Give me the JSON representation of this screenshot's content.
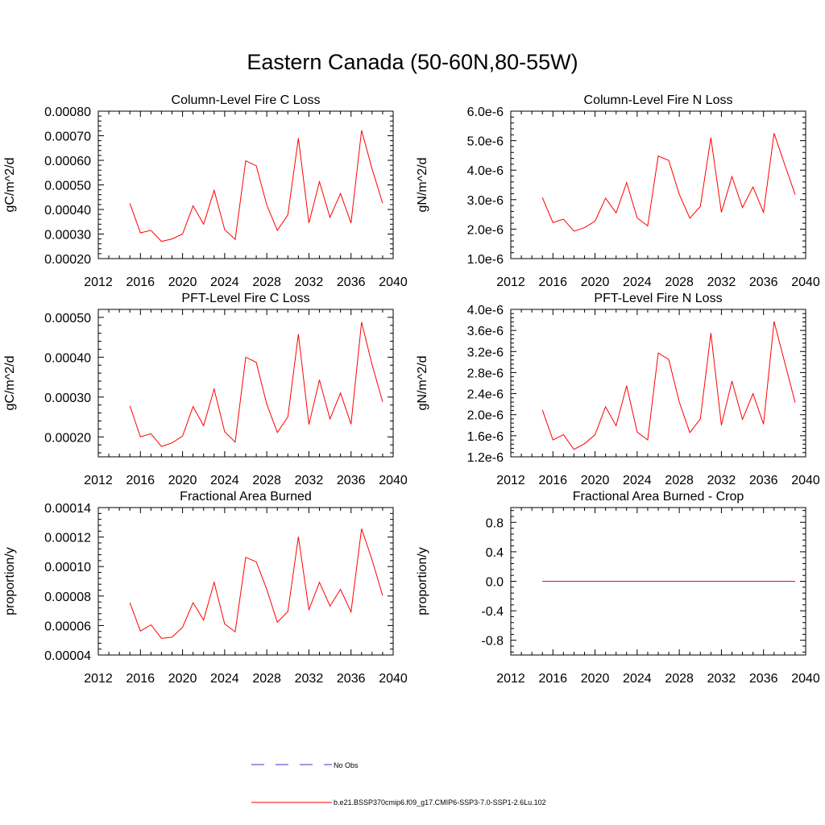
{
  "figure": {
    "title": "Eastern Canada (50-60N,80-55W)"
  },
  "legend": {
    "entries": [
      {
        "label": "No Obs",
        "color": "#3333cc",
        "style": "dashed"
      },
      {
        "label": "b.e21.BSSP370cmip6.f09_g17.CMIP6-SSP3-7.0-SSP1-2.6Lu.102",
        "color": "#ff0000",
        "style": "solid"
      }
    ]
  },
  "chart_data": [
    {
      "type": "line",
      "title": "Column-Level Fire C Loss",
      "xlabel": "",
      "ylabel": "gC/m^2/d",
      "xlim": [
        2012,
        2040
      ],
      "ylim": [
        0.0002,
        0.0008
      ],
      "xticks": [
        2012,
        2016,
        2020,
        2024,
        2028,
        2032,
        2036,
        2040
      ],
      "yticks": [
        "0.00020",
        "0.00030",
        "0.00040",
        "0.00050",
        "0.00060",
        "0.00070",
        "0.00080"
      ],
      "x": [
        2015,
        2016,
        2017,
        2018,
        2019,
        2020,
        2021,
        2022,
        2023,
        2024,
        2025,
        2026,
        2027,
        2028,
        2029,
        2030,
        2031,
        2032,
        2033,
        2034,
        2035,
        2036,
        2037,
        2038,
        2039
      ],
      "series": [
        {
          "color": "#ff0000",
          "values": [
            0.000425,
            0.000305,
            0.000315,
            0.00027,
            0.00028,
            0.0003,
            0.000415,
            0.00034,
            0.000478,
            0.000318,
            0.000278,
            0.000598,
            0.000578,
            0.000418,
            0.000315,
            0.000378,
            0.00069,
            0.000345,
            0.000513,
            0.000368,
            0.000465,
            0.000345,
            0.000722,
            0.000565,
            0.000425
          ]
        }
      ]
    },
    {
      "type": "line",
      "title": "Column-Level Fire N Loss",
      "xlabel": "",
      "ylabel": "gN/m^2/d",
      "xlim": [
        2012,
        2040
      ],
      "ylim": [
        1e-06,
        6e-06
      ],
      "xticks": [
        2012,
        2016,
        2020,
        2024,
        2028,
        2032,
        2036,
        2040
      ],
      "yticks": [
        "1.0e-6",
        "2.0e-6",
        "3.0e-6",
        "4.0e-6",
        "5.0e-6",
        "6.0e-6"
      ],
      "x": [
        2015,
        2016,
        2017,
        2018,
        2019,
        2020,
        2021,
        2022,
        2023,
        2024,
        2025,
        2026,
        2027,
        2028,
        2029,
        2030,
        2031,
        2032,
        2033,
        2034,
        2035,
        2036,
        2037,
        2038,
        2039
      ],
      "series": [
        {
          "color": "#ff0000",
          "values": [
            3.07e-06,
            2.22e-06,
            2.34e-06,
            1.93e-06,
            2.05e-06,
            2.27e-06,
            3.05e-06,
            2.55e-06,
            3.58e-06,
            2.38e-06,
            2.11e-06,
            4.48e-06,
            4.33e-06,
            3.18e-06,
            2.37e-06,
            2.77e-06,
            5.1e-06,
            2.57e-06,
            3.78e-06,
            2.73e-06,
            3.43e-06,
            2.57e-06,
            5.25e-06,
            4.2e-06,
            3.17e-06
          ]
        }
      ]
    },
    {
      "type": "line",
      "title": "PFT-Level Fire C Loss",
      "xlabel": "",
      "ylabel": "gC/m^2/d",
      "xlim": [
        2012,
        2040
      ],
      "ylim": [
        0.00015,
        0.00052
      ],
      "xticks": [
        2012,
        2016,
        2020,
        2024,
        2028,
        2032,
        2036,
        2040
      ],
      "yticks": [
        "0.00020",
        "0.00030",
        "0.00040",
        "0.00050"
      ],
      "x": [
        2015,
        2016,
        2017,
        2018,
        2019,
        2020,
        2021,
        2022,
        2023,
        2024,
        2025,
        2026,
        2027,
        2028,
        2029,
        2030,
        2031,
        2032,
        2033,
        2034,
        2035,
        2036,
        2037,
        2038,
        2039
      ],
      "series": [
        {
          "color": "#ff0000",
          "values": [
            0.000278,
            0.0002,
            0.000208,
            0.000176,
            0.000185,
            0.000202,
            0.000276,
            0.000228,
            0.00032,
            0.000213,
            0.000187,
            0.0004,
            0.000387,
            0.000282,
            0.000211,
            0.00025,
            0.000458,
            0.000231,
            0.000343,
            0.000245,
            0.00031,
            0.000232,
            0.000488,
            0.000381,
            0.000288
          ]
        }
      ]
    },
    {
      "type": "line",
      "title": "PFT-Level Fire N Loss",
      "xlabel": "",
      "ylabel": "gN/m^2/d",
      "xlim": [
        2012,
        2040
      ],
      "ylim": [
        1.2e-06,
        4e-06
      ],
      "xticks": [
        2012,
        2016,
        2020,
        2024,
        2028,
        2032,
        2036,
        2040
      ],
      "yticks": [
        "1.2e-6",
        "1.6e-6",
        "2.0e-6",
        "2.4e-6",
        "2.8e-6",
        "3.2e-6",
        "3.6e-6",
        "4.0e-6"
      ],
      "x": [
        2015,
        2016,
        2017,
        2018,
        2019,
        2020,
        2021,
        2022,
        2023,
        2024,
        2025,
        2026,
        2027,
        2028,
        2029,
        2030,
        2031,
        2032,
        2033,
        2034,
        2035,
        2036,
        2037,
        2038,
        2039
      ],
      "series": [
        {
          "color": "#ff0000",
          "values": [
            2.09e-06,
            1.52e-06,
            1.62e-06,
            1.34e-06,
            1.45e-06,
            1.62e-06,
            2.15e-06,
            1.79e-06,
            2.55e-06,
            1.67e-06,
            1.52e-06,
            3.17e-06,
            3.05e-06,
            2.24e-06,
            1.66e-06,
            1.92e-06,
            3.55e-06,
            1.8e-06,
            2.64e-06,
            1.91e-06,
            2.4e-06,
            1.82e-06,
            3.77e-06,
            3e-06,
            2.23e-06
          ]
        }
      ]
    },
    {
      "type": "line",
      "title": "Fractional Area Burned",
      "xlabel": "",
      "ylabel": "proportion/y",
      "xlim": [
        2012,
        2040
      ],
      "ylim": [
        4e-05,
        0.00014
      ],
      "xticks": [
        2012,
        2016,
        2020,
        2024,
        2028,
        2032,
        2036,
        2040
      ],
      "yticks": [
        "0.00004",
        "0.00006",
        "0.00008",
        "0.00010",
        "0.00012",
        "0.00014"
      ],
      "x": [
        2015,
        2016,
        2017,
        2018,
        2019,
        2020,
        2021,
        2022,
        2023,
        2024,
        2025,
        2026,
        2027,
        2028,
        2029,
        2030,
        2031,
        2032,
        2033,
        2034,
        2035,
        2036,
        2037,
        2038,
        2039
      ],
      "series": [
        {
          "color": "#ff0000",
          "values": [
            7.55e-05,
            5.62e-05,
            6.05e-05,
            5.13e-05,
            5.21e-05,
            5.88e-05,
            7.55e-05,
            6.37e-05,
            8.93e-05,
            6.11e-05,
            5.57e-05,
            0.0001062,
            0.0001032,
            8.45e-05,
            6.22e-05,
            6.95e-05,
            0.0001202,
            7.07e-05,
            8.93e-05,
            7.32e-05,
            8.45e-05,
            6.92e-05,
            0.0001257,
            0.0001045,
            8.03e-05
          ]
        }
      ]
    },
    {
      "type": "line",
      "title": "Fractional Area Burned - Crop",
      "xlabel": "",
      "ylabel": "proportion/y",
      "xlim": [
        2012,
        2040
      ],
      "ylim": [
        -1.0,
        1.0
      ],
      "xticks": [
        2012,
        2016,
        2020,
        2024,
        2028,
        2032,
        2036,
        2040
      ],
      "yticks": [
        "-0.8",
        "-0.4",
        "0.0",
        "0.4",
        "0.8"
      ],
      "x": [
        2015,
        2016,
        2017,
        2018,
        2019,
        2020,
        2021,
        2022,
        2023,
        2024,
        2025,
        2026,
        2027,
        2028,
        2029,
        2030,
        2031,
        2032,
        2033,
        2034,
        2035,
        2036,
        2037,
        2038,
        2039
      ],
      "series": [
        {
          "color": "#ff0000",
          "values": [
            0,
            0,
            0,
            0,
            0,
            0,
            0,
            0,
            0,
            0,
            0,
            0,
            0,
            0,
            0,
            0,
            0,
            0,
            0,
            0,
            0,
            0,
            0,
            0,
            0
          ]
        }
      ]
    }
  ]
}
